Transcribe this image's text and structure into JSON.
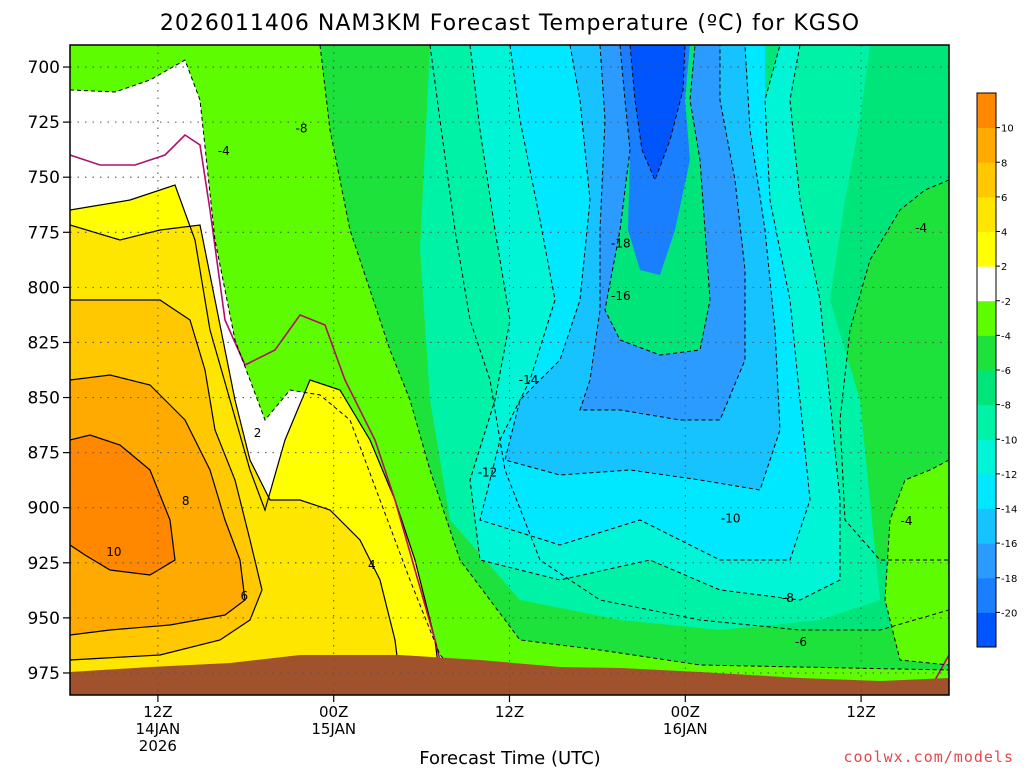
{
  "chart_data": {
    "type": "heatmap",
    "title": "2026011406 NAM3KM Forecast Temperature (ºC) for KGSO",
    "xlabel": "Forecast Time (UTC)",
    "ylabel": "",
    "credit": "coolwx.com/models",
    "y_axis": {
      "unit": "hPa",
      "range": [
        690,
        985
      ],
      "ticks": [
        700,
        725,
        750,
        775,
        800,
        825,
        850,
        875,
        900,
        925,
        950,
        975
      ],
      "tick_labels": [
        "700",
        "725",
        "750",
        "775",
        "800",
        "825",
        "850",
        "875",
        "900",
        "925",
        "950",
        "975"
      ]
    },
    "x_axis": {
      "unit": "forecast hour",
      "range": [
        6,
        66
      ],
      "ticks": [
        12,
        24,
        36,
        48,
        60
      ],
      "tick_labels": [
        [
          "12Z",
          "14JAN",
          "2026"
        ],
        [
          "00Z",
          "15JAN"
        ],
        [
          "12Z"
        ],
        [
          "00Z",
          "16JAN"
        ],
        [
          "12Z"
        ]
      ]
    },
    "colorbar": {
      "levels": [
        -22,
        -20,
        -18,
        -16,
        -14,
        -12,
        -10,
        -8,
        -6,
        -4,
        -2,
        2,
        4,
        6,
        8,
        10,
        12
      ],
      "tick_labels": [
        "-20",
        "-18",
        "-16",
        "-14",
        "-12",
        "-10",
        "-8",
        "-6",
        "-4",
        "-2",
        "2",
        "4",
        "6",
        "8",
        "10"
      ],
      "colors": [
        "#0055ff",
        "#1a7fff",
        "#2b9bff",
        "#17c3ff",
        "#00e8ff",
        "#00f5d6",
        "#00f2a6",
        "#00e57a",
        "#1ee23c",
        "#5efc00",
        "#ffffff",
        "#ffff00",
        "#ffe600",
        "#ffc800",
        "#ffaa00",
        "#ff8800"
      ]
    },
    "contour_labels": [
      {
        "text": "-8",
        "x": 21.8,
        "y": 728
      },
      {
        "text": "-4",
        "x": 16.5,
        "y": 738
      },
      {
        "text": "-18",
        "x": 43.6,
        "y": 780
      },
      {
        "text": "-16",
        "x": 43.6,
        "y": 804
      },
      {
        "text": "-14",
        "x": 37.3,
        "y": 842
      },
      {
        "text": "-12",
        "x": 34.5,
        "y": 884
      },
      {
        "text": "-10",
        "x": 51.1,
        "y": 905
      },
      {
        "text": "-8",
        "x": 55.0,
        "y": 941
      },
      {
        "text": "-6",
        "x": 55.9,
        "y": 961
      },
      {
        "text": "-4",
        "x": 64.1,
        "y": 773
      },
      {
        "text": "-4",
        "x": 63.1,
        "y": 906
      },
      {
        "text": "2",
        "x": 18.8,
        "y": 866
      },
      {
        "text": "4",
        "x": 26.6,
        "y": 926
      },
      {
        "text": "6",
        "x": 17.9,
        "y": 940
      },
      {
        "text": "8",
        "x": 13.9,
        "y": 897
      },
      {
        "text": "10",
        "x": 9.0,
        "y": 920
      }
    ],
    "grid": true,
    "legend": "colorbar-right"
  }
}
